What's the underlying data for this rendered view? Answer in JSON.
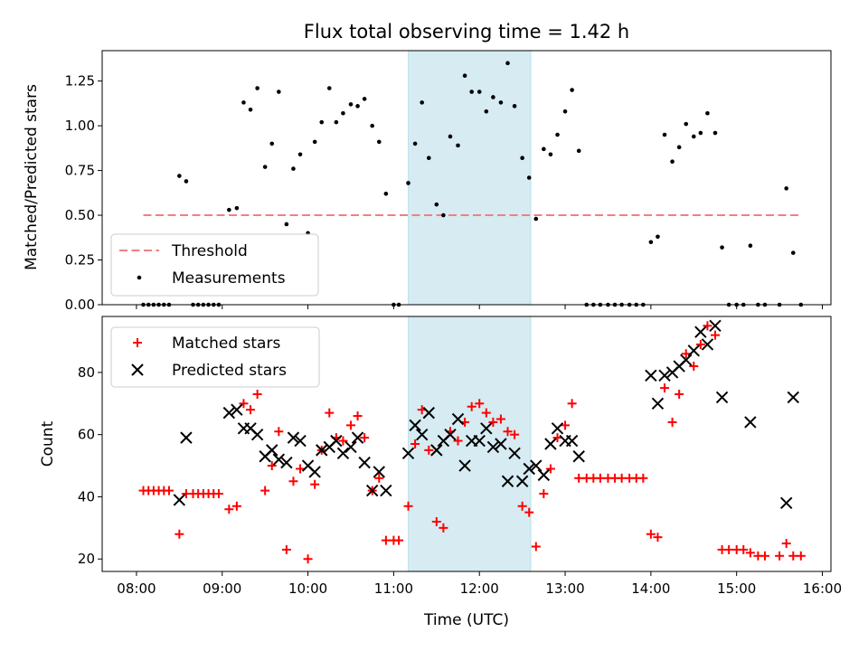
{
  "chart_data": [
    {
      "panel": "top",
      "type": "scatter",
      "title": "Flux total observing time = 1.42 h",
      "xlabel": "",
      "ylabel": "Matched/Predicted stars",
      "xlim": [
        7.6,
        16.1
      ],
      "ylim": [
        0.0,
        1.42
      ],
      "yticks": [
        "0.00",
        "0.25",
        "0.50",
        "0.75",
        "1.00",
        "1.25"
      ],
      "ytick_values": [
        0,
        0.25,
        0.5,
        0.75,
        1.0,
        1.25
      ],
      "shaded_span": [
        11.17,
        12.6
      ],
      "threshold": {
        "name": "Threshold",
        "value": 0.5,
        "x_range": [
          8.08,
          15.75
        ],
        "color": "#f08080"
      },
      "legend": [
        {
          "name": "Threshold",
          "marker": "dash"
        },
        {
          "name": "Measurements",
          "marker": "dot"
        }
      ],
      "series": [
        {
          "name": "Measurements",
          "color": "#000000",
          "x": [
            8.08,
            8.14,
            8.2,
            8.26,
            8.32,
            8.38,
            8.5,
            8.58,
            8.66,
            8.72,
            8.78,
            8.84,
            8.9,
            8.96,
            9.08,
            9.17,
            9.25,
            9.33,
            9.41,
            9.5,
            9.58,
            9.66,
            9.75,
            9.83,
            9.91,
            10.0,
            10.08,
            10.16,
            10.25,
            10.33,
            10.41,
            10.5,
            10.58,
            10.66,
            10.75,
            10.83,
            10.91,
            11.0,
            11.06,
            11.17,
            11.25,
            11.33,
            11.41,
            11.5,
            11.58,
            11.66,
            11.75,
            11.83,
            11.91,
            12.0,
            12.08,
            12.16,
            12.25,
            12.33,
            12.41,
            12.5,
            12.58,
            12.66,
            12.75,
            12.83,
            12.91,
            13.0,
            13.08,
            13.16,
            13.25,
            13.33,
            13.41,
            13.5,
            13.58,
            13.66,
            13.75,
            13.83,
            13.91,
            14.0,
            14.08,
            14.16,
            14.25,
            14.33,
            14.41,
            14.5,
            14.58,
            14.66,
            14.75,
            14.83,
            14.91,
            15.0,
            15.08,
            15.16,
            15.25,
            15.33,
            15.5,
            15.58,
            15.66,
            15.75
          ],
          "y": [
            0,
            0,
            0,
            0,
            0,
            0,
            0.72,
            0.69,
            0,
            0,
            0,
            0,
            0,
            0,
            0.53,
            0.54,
            1.13,
            1.09,
            1.21,
            0.77,
            0.9,
            1.19,
            0.45,
            0.76,
            0.84,
            0.4,
            0.91,
            1.02,
            1.21,
            1.02,
            1.07,
            1.12,
            1.11,
            1.15,
            1.0,
            0.91,
            0.62,
            0,
            0,
            0.68,
            0.9,
            1.13,
            0.82,
            0.56,
            0.5,
            0.94,
            0.89,
            1.28,
            1.19,
            1.19,
            1.08,
            1.16,
            1.13,
            1.35,
            1.11,
            0.82,
            0.71,
            0.48,
            0.87,
            0.84,
            0.95,
            1.08,
            1.2,
            0.86,
            0,
            0,
            0,
            0,
            0,
            0,
            0,
            0,
            0,
            0.35,
            0.38,
            0.95,
            0.8,
            0.88,
            1.01,
            0.94,
            0.96,
            1.07,
            0.96,
            0.32,
            0,
            0,
            0,
            0.33,
            0,
            0,
            0,
            0.65,
            0.29,
            0
          ]
        }
      ]
    },
    {
      "panel": "bottom",
      "type": "scatter",
      "title": "",
      "xlabel": "Time (UTC)",
      "ylabel": "Count",
      "xlim": [
        7.6,
        16.1
      ],
      "ylim": [
        16.0,
        98.0
      ],
      "yticks": [
        "20",
        "40",
        "60",
        "80"
      ],
      "ytick_values": [
        20,
        40,
        60,
        80
      ],
      "xticks": [
        "08:00",
        "09:00",
        "10:00",
        "11:00",
        "12:00",
        "13:00",
        "14:00",
        "15:00",
        "16:00"
      ],
      "xtick_values": [
        8,
        9,
        10,
        11,
        12,
        13,
        14,
        15,
        16
      ],
      "shaded_span": [
        11.17,
        12.6
      ],
      "legend": [
        {
          "name": "Matched stars",
          "marker": "plus"
        },
        {
          "name": "Predicted stars",
          "marker": "x"
        }
      ],
      "series": [
        {
          "name": "Matched stars",
          "marker": "plus",
          "color": "#ff0000",
          "x": [
            8.08,
            8.14,
            8.2,
            8.26,
            8.32,
            8.38,
            8.5,
            8.58,
            8.66,
            8.72,
            8.78,
            8.84,
            8.9,
            8.96,
            9.08,
            9.17,
            9.25,
            9.33,
            9.41,
            9.5,
            9.58,
            9.66,
            9.75,
            9.83,
            9.91,
            10.0,
            10.08,
            10.16,
            10.25,
            10.33,
            10.41,
            10.5,
            10.58,
            10.66,
            10.75,
            10.83,
            10.91,
            11.0,
            11.06,
            11.17,
            11.25,
            11.33,
            11.41,
            11.5,
            11.58,
            11.66,
            11.75,
            11.83,
            11.91,
            12.0,
            12.08,
            12.16,
            12.25,
            12.33,
            12.41,
            12.5,
            12.58,
            12.66,
            12.75,
            12.83,
            12.91,
            13.0,
            13.08,
            13.16,
            13.25,
            13.33,
            13.41,
            13.5,
            13.58,
            13.66,
            13.75,
            13.83,
            13.91,
            14.0,
            14.08,
            14.16,
            14.25,
            14.33,
            14.41,
            14.5,
            14.58,
            14.66,
            14.75,
            14.83,
            14.91,
            15.0,
            15.08,
            15.16,
            15.25,
            15.33,
            15.5,
            15.58,
            15.66,
            15.75
          ],
          "y": [
            42,
            42,
            42,
            42,
            42,
            42,
            28,
            41,
            41,
            41,
            41,
            41,
            41,
            41,
            36,
            37,
            70,
            68,
            73,
            42,
            50,
            61,
            23,
            45,
            49,
            20,
            44,
            55,
            67,
            59,
            58,
            63,
            66,
            59,
            42,
            46,
            26,
            26,
            26,
            37,
            57,
            68,
            55,
            32,
            30,
            61,
            58,
            64,
            69,
            70,
            67,
            64,
            65,
            61,
            60,
            37,
            35,
            24,
            41,
            49,
            59,
            63,
            70,
            46,
            46,
            46,
            46,
            46,
            46,
            46,
            46,
            46,
            46,
            28,
            27,
            75,
            64,
            73,
            86,
            82,
            89,
            95,
            92,
            23,
            23,
            23,
            23,
            22,
            21,
            21,
            21,
            25,
            21,
            21
          ]
        },
        {
          "name": "Predicted stars",
          "marker": "x",
          "color": "#000000",
          "x": [
            8.5,
            8.58,
            9.08,
            9.17,
            9.25,
            9.33,
            9.41,
            9.5,
            9.58,
            9.66,
            9.75,
            9.83,
            9.91,
            10.0,
            10.08,
            10.16,
            10.25,
            10.33,
            10.41,
            10.5,
            10.58,
            10.66,
            10.75,
            10.83,
            10.91,
            11.17,
            11.25,
            11.33,
            11.41,
            11.5,
            11.58,
            11.66,
            11.75,
            11.83,
            11.91,
            12.0,
            12.08,
            12.16,
            12.25,
            12.33,
            12.41,
            12.5,
            12.58,
            12.66,
            12.75,
            12.83,
            12.91,
            13.0,
            13.08,
            13.16,
            14.0,
            14.08,
            14.16,
            14.25,
            14.33,
            14.41,
            14.5,
            14.58,
            14.66,
            14.75,
            14.83,
            15.16,
            15.58,
            15.66
          ],
          "y": [
            39,
            59,
            67,
            68,
            62,
            62,
            60,
            53,
            55,
            52,
            51,
            59,
            58,
            50,
            48,
            55,
            56,
            58,
            54,
            56,
            59,
            51,
            42,
            48,
            42,
            54,
            63,
            60,
            67,
            55,
            58,
            60,
            65,
            50,
            58,
            58,
            62,
            56,
            57,
            45,
            54,
            45,
            49,
            50,
            47,
            57,
            62,
            58,
            58,
            53,
            79,
            70,
            79,
            80,
            82,
            84,
            87,
            93,
            89,
            95,
            72,
            64,
            38,
            72
          ]
        }
      ]
    }
  ]
}
